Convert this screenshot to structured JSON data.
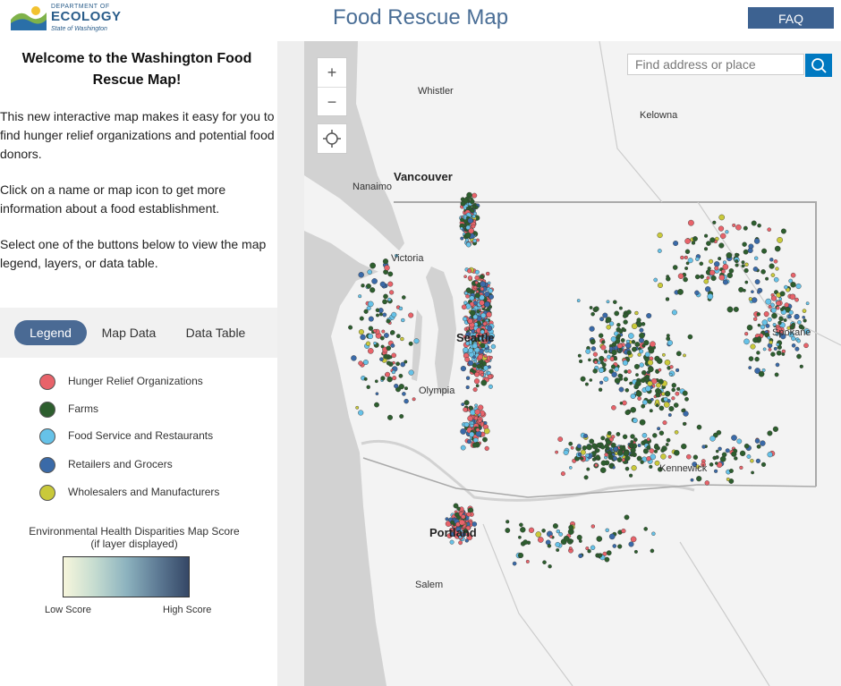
{
  "header": {
    "logo": {
      "line1": "DEPARTMENT OF",
      "line2": "ECOLOGY",
      "line3": "State of Washington"
    },
    "title": "Food Rescue Map",
    "faq_label": "FAQ"
  },
  "sidebar": {
    "welcome": "Welcome to the Washington Food Rescue Map!",
    "paragraphs": [
      "This new interactive map makes it easy for you to find hunger relief organizations and potential food donors.",
      "Click on a name or map icon to get more information about a food establishment.",
      "Select one of the buttons below to view the map legend, layers, or data table."
    ],
    "tabs": [
      {
        "label": "Legend",
        "active": true
      },
      {
        "label": "Map Data",
        "active": false
      },
      {
        "label": "Data Table",
        "active": false
      }
    ],
    "legend": [
      {
        "label": "Hunger Relief Organizations",
        "color": "#e8636a"
      },
      {
        "label": "Farms",
        "color": "#2d5e2e"
      },
      {
        "label": "Food Service and Restaurants",
        "color": "#66c2e8"
      },
      {
        "label": "Retailers and Grocers",
        "color": "#3a6aa8"
      },
      {
        "label": "Wholesalers and Manufacturers",
        "color": "#c9c93a"
      }
    ],
    "ehd": {
      "title": "Environmental Health Disparities Map Score (if layer displayed)",
      "low": "Low Score",
      "high": "High Score"
    }
  },
  "map": {
    "zoom_in": "+",
    "zoom_out": "−",
    "search_placeholder": "Find address or place",
    "cities": {
      "whistler": "Whistler",
      "kelowna": "Kelowna",
      "vancouver": "Vancouver",
      "nanaimo": "Nanaimo",
      "victoria": "Victoria",
      "seattle": "Seattle",
      "olympia": "Olympia",
      "spokane": "Spokane",
      "kennewick": "Kennewick",
      "portland": "Portland",
      "salem": "Salem"
    }
  }
}
